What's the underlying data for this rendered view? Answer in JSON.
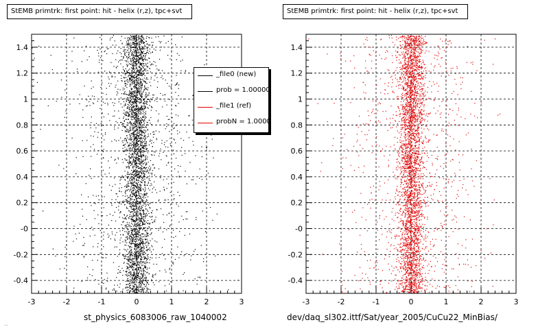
{
  "colors": {
    "black": "#000000",
    "red": "#e00000"
  },
  "footer_text": "...",
  "chart_data": [
    {
      "type": "scatter",
      "title": "StEMB primtrk: first point: hit - helix (r,z), tpc+svt",
      "xlabel": "st_physics_6083006_raw_1040002",
      "ylabel": "",
      "xlim": [
        -3,
        3
      ],
      "ylim": [
        -0.5,
        1.5
      ],
      "x_ticks": [
        -3,
        -2,
        -1,
        0,
        1,
        2,
        3
      ],
      "x_tick_labels": [
        "-3",
        "-2",
        "-1",
        "0",
        "1",
        "2",
        "3"
      ],
      "y_ticks": [
        -0.4,
        -0.2,
        0,
        0.2,
        0.4,
        0.6,
        0.8,
        1,
        1.2,
        1.4
      ],
      "y_tick_labels": [
        "-0.4",
        "-0.2",
        "-0",
        "0.2",
        "0.4",
        "0.6",
        "0.8",
        "1",
        "1.2",
        "1.4"
      ],
      "grid": true,
      "marker_color": "#000000",
      "distribution": {
        "x_center": 0.0,
        "x_core_sigma": 0.18,
        "x_tail_sigma": 1.0,
        "y_range": [
          -0.5,
          1.5
        ]
      },
      "legend_placement": "top-right",
      "legend": [
        {
          "label": "_file0 (new)",
          "color": "#000000"
        },
        {
          "label": "prob = 1.000000",
          "color": "#000000"
        },
        {
          "label": "_file1 (ref)",
          "color": "#e00000"
        },
        {
          "label": "probN = 1.000000",
          "color": "#e00000"
        }
      ]
    },
    {
      "type": "scatter",
      "title": "StEMB primtrk: first point: hit - helix (r,z), tpc+svt",
      "xlabel": "dev/daq_sl302.ittf/Sat/year_2005/CuCu22_MinBias/",
      "ylabel": "",
      "xlim": [
        -3,
        3
      ],
      "ylim": [
        -0.5,
        1.5
      ],
      "x_ticks": [
        -3,
        -2,
        -1,
        0,
        1,
        2,
        3
      ],
      "x_tick_labels": [
        "-3",
        "-2",
        "-1",
        "0",
        "1",
        "2",
        "3"
      ],
      "y_ticks": [
        -0.4,
        -0.2,
        0,
        0.2,
        0.4,
        0.6,
        0.8,
        1,
        1.2,
        1.4
      ],
      "y_tick_labels": [
        "-0.4",
        "-0.2",
        "-0",
        "0.2",
        "0.4",
        "0.6",
        "0.8",
        "1",
        "1.2",
        "1.4"
      ],
      "grid": true,
      "marker_color": "#e00000",
      "distribution": {
        "x_center": 0.0,
        "x_core_sigma": 0.18,
        "x_tail_sigma": 1.0,
        "y_range": [
          -0.5,
          1.5
        ]
      }
    }
  ]
}
